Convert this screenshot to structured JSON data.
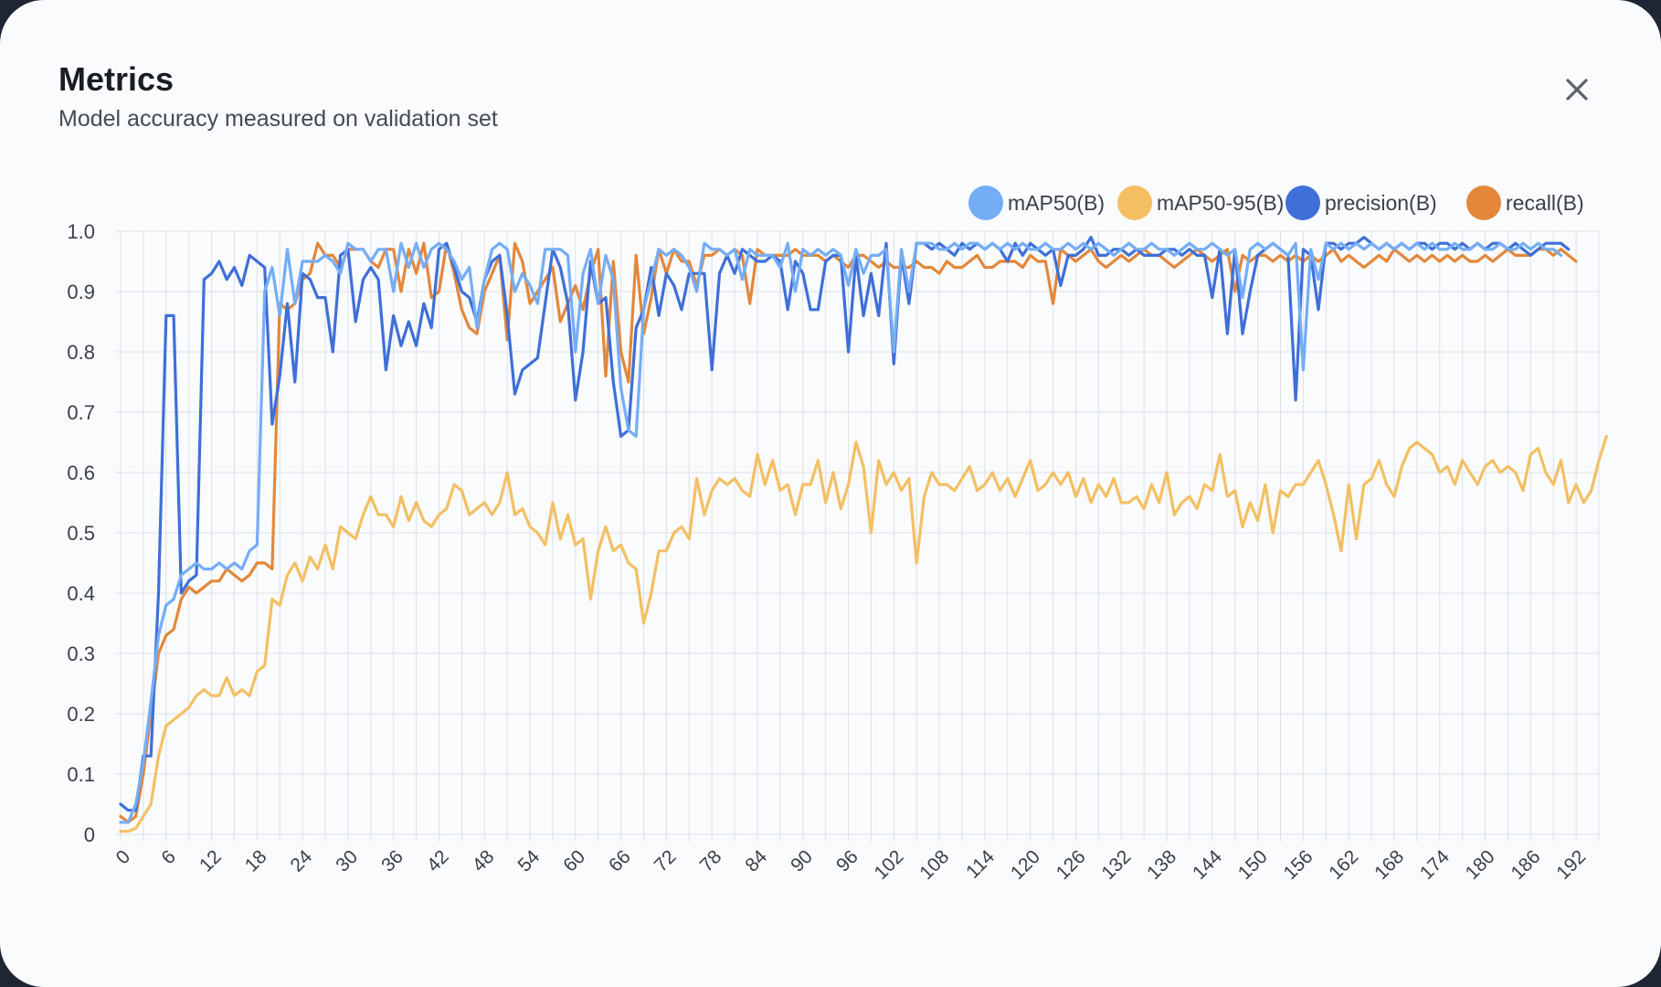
{
  "modal": {
    "title": "Metrics",
    "subtitle": "Model accuracy measured on validation set",
    "close_icon": "close-icon"
  },
  "chart_data": {
    "type": "line",
    "title": "",
    "xlabel": "",
    "ylabel": "",
    "xlim": [
      0,
      195
    ],
    "ylim": [
      0,
      1.0
    ],
    "grid": true,
    "legend_position": "top-right",
    "yticks": [
      "0",
      "0.1",
      "0.2",
      "0.3",
      "0.4",
      "0.5",
      "0.6",
      "0.7",
      "0.8",
      "0.9",
      "1.0"
    ],
    "xticks": [
      "0",
      "6",
      "12",
      "18",
      "24",
      "30",
      "36",
      "42",
      "48",
      "54",
      "60",
      "66",
      "72",
      "78",
      "84",
      "90",
      "96",
      "102",
      "108",
      "114",
      "120",
      "126",
      "132",
      "138",
      "144",
      "150",
      "156",
      "162",
      "168",
      "174",
      "180",
      "186",
      "192"
    ],
    "series": [
      {
        "name": "mAP50(B)",
        "color": "#74adf6",
        "values": [
          0.02,
          0.02,
          0.05,
          0.12,
          0.22,
          0.33,
          0.38,
          0.39,
          0.43,
          0.44,
          0.45,
          0.44,
          0.44,
          0.45,
          0.44,
          0.45,
          0.44,
          0.47,
          0.48,
          0.9,
          0.94,
          0.86,
          0.97,
          0.88,
          0.95,
          0.95,
          0.95,
          0.96,
          0.95,
          0.93,
          0.98,
          0.97,
          0.97,
          0.95,
          0.97,
          0.97,
          0.9,
          0.98,
          0.94,
          0.98,
          0.94,
          0.97,
          0.98,
          0.97,
          0.95,
          0.92,
          0.94,
          0.84,
          0.92,
          0.97,
          0.98,
          0.97,
          0.9,
          0.93,
          0.91,
          0.88,
          0.97,
          0.97,
          0.97,
          0.96,
          0.8,
          0.93,
          0.97,
          0.88,
          0.96,
          0.92,
          0.74,
          0.67,
          0.66,
          0.87,
          0.92,
          0.97,
          0.96,
          0.97,
          0.96,
          0.94,
          0.9,
          0.98,
          0.97,
          0.97,
          0.96,
          0.97,
          0.92,
          0.97,
          0.96,
          0.96,
          0.96,
          0.94,
          0.98,
          0.9,
          0.97,
          0.96,
          0.97,
          0.96,
          0.97,
          0.96,
          0.91,
          0.97,
          0.93,
          0.96,
          0.96,
          0.97,
          0.8,
          0.97,
          0.9,
          0.98,
          0.98,
          0.98,
          0.97,
          0.97,
          0.98,
          0.97,
          0.98,
          0.98,
          0.97,
          0.98,
          0.97,
          0.98,
          0.97,
          0.98,
          0.97,
          0.97,
          0.98,
          0.97,
          0.97,
          0.98,
          0.97,
          0.98,
          0.97,
          0.98,
          0.97,
          0.96,
          0.97,
          0.98,
          0.97,
          0.97,
          0.98,
          0.97,
          0.97,
          0.96,
          0.97,
          0.98,
          0.97,
          0.97,
          0.98,
          0.97,
          0.96,
          0.97,
          0.89,
          0.97,
          0.98,
          0.97,
          0.98,
          0.97,
          0.96,
          0.98,
          0.77,
          0.97,
          0.92,
          0.98,
          0.97,
          0.98,
          0.97,
          0.98,
          0.97,
          0.98,
          0.97,
          0.98,
          0.97,
          0.98,
          0.97,
          0.98,
          0.97,
          0.98,
          0.97,
          0.97,
          0.98,
          0.97,
          0.97,
          0.98,
          0.97,
          0.97,
          0.98,
          0.97,
          0.97,
          0.98,
          0.97,
          0.98,
          0.97,
          0.97,
          0.96
        ]
      },
      {
        "name": "mAP50-95(B)",
        "color": "#f4bf63",
        "values": [
          0.005,
          0.005,
          0.01,
          0.03,
          0.05,
          0.13,
          0.18,
          0.19,
          0.2,
          0.21,
          0.23,
          0.24,
          0.23,
          0.23,
          0.26,
          0.23,
          0.24,
          0.23,
          0.27,
          0.28,
          0.39,
          0.38,
          0.43,
          0.45,
          0.42,
          0.46,
          0.44,
          0.48,
          0.44,
          0.51,
          0.5,
          0.49,
          0.53,
          0.56,
          0.53,
          0.53,
          0.51,
          0.56,
          0.52,
          0.55,
          0.52,
          0.51,
          0.53,
          0.54,
          0.58,
          0.57,
          0.53,
          0.54,
          0.55,
          0.53,
          0.55,
          0.6,
          0.53,
          0.54,
          0.51,
          0.5,
          0.48,
          0.55,
          0.49,
          0.53,
          0.48,
          0.49,
          0.39,
          0.47,
          0.51,
          0.47,
          0.48,
          0.45,
          0.44,
          0.35,
          0.4,
          0.47,
          0.47,
          0.5,
          0.51,
          0.49,
          0.59,
          0.53,
          0.57,
          0.59,
          0.58,
          0.59,
          0.57,
          0.56,
          0.63,
          0.58,
          0.62,
          0.57,
          0.58,
          0.53,
          0.58,
          0.58,
          0.62,
          0.55,
          0.6,
          0.54,
          0.58,
          0.65,
          0.61,
          0.5,
          0.62,
          0.58,
          0.6,
          0.57,
          0.59,
          0.45,
          0.56,
          0.6,
          0.58,
          0.58,
          0.57,
          0.59,
          0.61,
          0.57,
          0.58,
          0.6,
          0.57,
          0.59,
          0.56,
          0.59,
          0.62,
          0.57,
          0.58,
          0.6,
          0.58,
          0.6,
          0.56,
          0.59,
          0.55,
          0.58,
          0.56,
          0.59,
          0.55,
          0.55,
          0.56,
          0.54,
          0.58,
          0.55,
          0.6,
          0.53,
          0.55,
          0.56,
          0.54,
          0.58,
          0.57,
          0.63,
          0.56,
          0.57,
          0.51,
          0.55,
          0.52,
          0.58,
          0.5,
          0.57,
          0.56,
          0.58,
          0.58,
          0.6,
          0.62,
          0.58,
          0.53,
          0.47,
          0.58,
          0.49,
          0.58,
          0.59,
          0.62,
          0.58,
          0.56,
          0.61,
          0.64,
          0.65,
          0.64,
          0.63,
          0.6,
          0.61,
          0.58,
          0.62,
          0.6,
          0.58,
          0.61,
          0.62,
          0.6,
          0.61,
          0.6,
          0.57,
          0.63,
          0.64,
          0.6,
          0.58,
          0.62,
          0.55,
          0.58,
          0.55,
          0.57,
          0.62,
          0.66
        ]
      },
      {
        "name": "precision(B)",
        "color": "#3f6fd8",
        "values": [
          0.05,
          0.04,
          0.04,
          0.13,
          0.13,
          0.4,
          0.86,
          0.86,
          0.4,
          0.42,
          0.43,
          0.92,
          0.93,
          0.95,
          0.92,
          0.94,
          0.91,
          0.96,
          0.95,
          0.94,
          0.68,
          0.76,
          0.88,
          0.75,
          0.93,
          0.92,
          0.89,
          0.89,
          0.8,
          0.96,
          0.97,
          0.85,
          0.92,
          0.94,
          0.92,
          0.77,
          0.86,
          0.81,
          0.85,
          0.81,
          0.88,
          0.84,
          0.97,
          0.98,
          0.94,
          0.9,
          0.89,
          0.85,
          0.92,
          0.95,
          0.96,
          0.86,
          0.73,
          0.77,
          0.78,
          0.79,
          0.88,
          0.97,
          0.94,
          0.88,
          0.72,
          0.8,
          0.95,
          0.88,
          0.89,
          0.75,
          0.66,
          0.67,
          0.84,
          0.87,
          0.94,
          0.86,
          0.93,
          0.91,
          0.87,
          0.93,
          0.93,
          0.93,
          0.77,
          0.93,
          0.96,
          0.93,
          0.97,
          0.96,
          0.95,
          0.95,
          0.96,
          0.95,
          0.87,
          0.95,
          0.93,
          0.87,
          0.87,
          0.95,
          0.96,
          0.96,
          0.8,
          0.96,
          0.86,
          0.93,
          0.86,
          0.98,
          0.78,
          0.96,
          0.88,
          0.98,
          0.98,
          0.97,
          0.98,
          0.97,
          0.96,
          0.98,
          0.97,
          0.98,
          0.97,
          0.98,
          0.97,
          0.95,
          0.98,
          0.96,
          0.98,
          0.97,
          0.96,
          0.97,
          0.91,
          0.96,
          0.96,
          0.97,
          0.99,
          0.96,
          0.96,
          0.97,
          0.97,
          0.96,
          0.97,
          0.96,
          0.96,
          0.96,
          0.97,
          0.97,
          0.96,
          0.97,
          0.96,
          0.96,
          0.89,
          0.97,
          0.83,
          0.97,
          0.83,
          0.9,
          0.96,
          0.97,
          0.98,
          0.97,
          0.96,
          0.72,
          0.97,
          0.96,
          0.87,
          0.98,
          0.98,
          0.97,
          0.98,
          0.98,
          0.99,
          0.98,
          0.97,
          0.98,
          0.97,
          0.98,
          0.97,
          0.98,
          0.98,
          0.97,
          0.98,
          0.98,
          0.97,
          0.98,
          0.97,
          0.98,
          0.97,
          0.98,
          0.98,
          0.97,
          0.98,
          0.97,
          0.96,
          0.97,
          0.98,
          0.98,
          0.98,
          0.97
        ]
      },
      {
        "name": "recall(B)",
        "color": "#e4873a",
        "values": [
          0.03,
          0.02,
          0.03,
          0.1,
          0.2,
          0.3,
          0.33,
          0.34,
          0.39,
          0.41,
          0.4,
          0.41,
          0.42,
          0.42,
          0.44,
          0.43,
          0.42,
          0.43,
          0.45,
          0.45,
          0.44,
          0.88,
          0.87,
          0.88,
          0.92,
          0.93,
          0.98,
          0.96,
          0.96,
          0.94,
          0.97,
          0.97,
          0.97,
          0.95,
          0.94,
          0.97,
          0.97,
          0.9,
          0.97,
          0.93,
          0.98,
          0.89,
          0.9,
          0.98,
          0.93,
          0.87,
          0.84,
          0.83,
          0.9,
          0.93,
          0.96,
          0.82,
          0.98,
          0.95,
          0.88,
          0.9,
          0.92,
          0.94,
          0.85,
          0.88,
          0.91,
          0.87,
          0.93,
          0.97,
          0.76,
          0.95,
          0.8,
          0.75,
          0.96,
          0.83,
          0.89,
          0.97,
          0.93,
          0.97,
          0.95,
          0.95,
          0.91,
          0.96,
          0.96,
          0.97,
          0.96,
          0.97,
          0.96,
          0.88,
          0.97,
          0.96,
          0.96,
          0.96,
          0.96,
          0.97,
          0.96,
          0.96,
          0.96,
          0.95,
          0.96,
          0.95,
          0.94,
          0.96,
          0.96,
          0.95,
          0.94,
          0.95,
          0.94,
          0.94,
          0.94,
          0.95,
          0.94,
          0.94,
          0.93,
          0.95,
          0.94,
          0.94,
          0.95,
          0.96,
          0.94,
          0.94,
          0.95,
          0.95,
          0.95,
          0.94,
          0.96,
          0.95,
          0.95,
          0.88,
          0.97,
          0.96,
          0.95,
          0.96,
          0.97,
          0.95,
          0.94,
          0.95,
          0.96,
          0.95,
          0.96,
          0.97,
          0.96,
          0.96,
          0.95,
          0.94,
          0.95,
          0.96,
          0.97,
          0.96,
          0.95,
          0.96,
          0.97,
          0.9,
          0.96,
          0.95,
          0.96,
          0.96,
          0.95,
          0.96,
          0.95,
          0.96,
          0.95,
          0.96,
          0.95,
          0.96,
          0.97,
          0.95,
          0.96,
          0.95,
          0.94,
          0.95,
          0.96,
          0.95,
          0.97,
          0.96,
          0.95,
          0.96,
          0.95,
          0.96,
          0.95,
          0.96,
          0.95,
          0.96,
          0.95,
          0.95,
          0.96,
          0.95,
          0.96,
          0.97,
          0.96,
          0.96,
          0.96,
          0.97,
          0.97,
          0.96,
          0.97,
          0.96,
          0.95
        ]
      }
    ]
  }
}
